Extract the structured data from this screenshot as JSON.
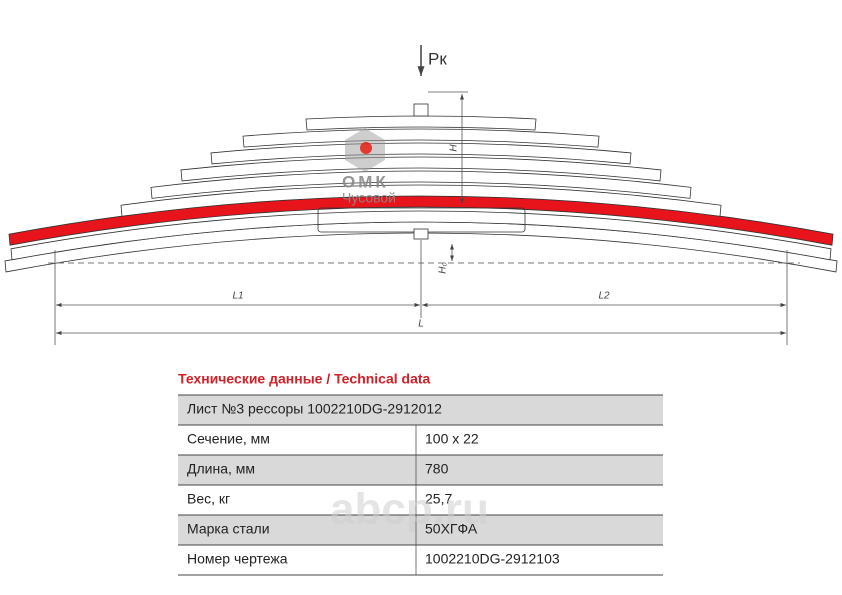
{
  "drawing": {
    "load_label": "Pк",
    "height_label": "H",
    "free_height_label": "H₀",
    "left_length_label": "L1",
    "right_length_label": "L2",
    "length_label": "L"
  },
  "logo": {
    "brand": "ОМК",
    "plant": "Чусовой"
  },
  "table": {
    "title": "Технические данные / Technical data",
    "header": "Лист №3 рессоры 1002210DG-2912012",
    "rows": [
      [
        "Сечение, мм",
        "100 x 22"
      ],
      [
        "Длина, мм",
        "780"
      ],
      [
        "Вес, кг",
        "25,7"
      ],
      [
        "Марка стали",
        "50ХГФА"
      ],
      [
        "Номер чертежа",
        "1002210DG-2912103"
      ]
    ]
  },
  "watermark": "abcp.ru"
}
